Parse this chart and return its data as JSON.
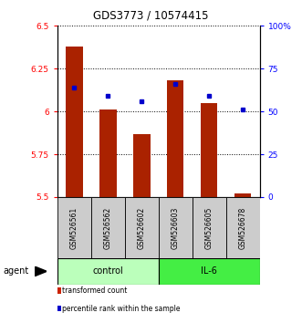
{
  "title": "GDS3773 / 10574415",
  "samples": [
    "GSM526561",
    "GSM526562",
    "GSM526602",
    "GSM526603",
    "GSM526605",
    "GSM526678"
  ],
  "red_values": [
    6.38,
    6.01,
    5.87,
    6.18,
    6.05,
    5.52
  ],
  "blue_values": [
    6.14,
    6.09,
    6.06,
    6.16,
    6.09,
    6.01
  ],
  "ymin": 5.5,
  "ymax": 6.5,
  "yticks": [
    5.5,
    5.75,
    6.0,
    6.25,
    6.5
  ],
  "ytick_labels": [
    "5.5",
    "5.75",
    "6",
    "6.25",
    "6.5"
  ],
  "right_yticks": [
    0,
    25,
    50,
    75,
    100
  ],
  "right_ytick_labels": [
    "0",
    "25",
    "50",
    "75",
    "100%"
  ],
  "groups": [
    {
      "label": "control",
      "indices": [
        0,
        1,
        2
      ],
      "color": "#bbffbb"
    },
    {
      "label": "IL-6",
      "indices": [
        3,
        4,
        5
      ],
      "color": "#44ee44"
    }
  ],
  "bar_color": "#aa2200",
  "marker_color": "#0000cc",
  "agent_label": "agent",
  "legend": [
    {
      "color": "#cc2200",
      "label": "transformed count"
    },
    {
      "color": "#0000cc",
      "label": "percentile rank within the sample"
    }
  ]
}
